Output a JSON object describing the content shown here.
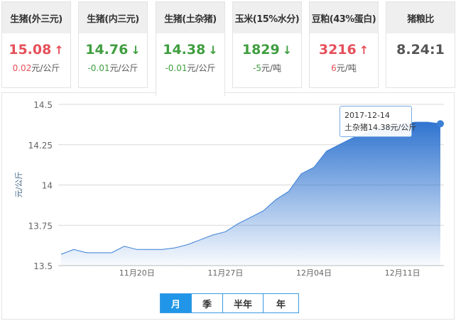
{
  "cards": [
    {
      "title": "生猪(外三元)",
      "value": "15.08",
      "change": "0.02",
      "unit": "元/公斤",
      "trend": "up"
    },
    {
      "title": "生猪(内三元)",
      "value": "14.76",
      "change": "-0.01",
      "unit": "元/公斤",
      "trend": "down"
    },
    {
      "title": "生猪(土杂猪)",
      "value": "14.38",
      "change": "-0.01",
      "unit": "元/公斤",
      "trend": "down"
    },
    {
      "title": "玉米(15%水分)",
      "value": "1829",
      "change": "-5",
      "unit": "元/吨",
      "trend": "down"
    },
    {
      "title": "豆粕(43%蛋白)",
      "value": "3216",
      "change": "6",
      "unit": "元/吨",
      "trend": "up"
    },
    {
      "title": "猪粮比",
      "value": "8.24:1",
      "change": "",
      "unit": "",
      "trend": "flat"
    }
  ],
  "icons": {
    "up": "arrow-up-icon",
    "down": "arrow-down-icon"
  },
  "colors": {
    "up": "#e5505a",
    "down": "#3f9e3f",
    "series": "#3a7fd5",
    "accent": "#2196e8"
  },
  "chart_data": {
    "type": "area",
    "ylabel": "元/公斤",
    "ylim": [
      13.5,
      14.5
    ],
    "yticks": [
      "14.5",
      "14.25",
      "14",
      "13.75",
      "13.5"
    ],
    "xticks": [
      {
        "date": "2017-11-20",
        "label": "11月20日"
      },
      {
        "date": "2017-11-27",
        "label": "11月27日"
      },
      {
        "date": "2017-12-04",
        "label": "12月04日"
      },
      {
        "date": "2017-12-11",
        "label": "12月11日"
      }
    ],
    "grid": true,
    "x_start": "2017-11-14",
    "x_end": "2017-12-14",
    "series": [
      {
        "values": [
          13.57,
          13.6,
          13.58,
          13.58,
          13.58,
          13.62,
          13.6,
          13.6,
          13.6,
          13.61,
          13.63,
          13.66,
          13.69,
          13.71,
          13.76,
          13.8,
          13.84,
          13.91,
          13.96,
          14.07,
          14.11,
          14.21,
          14.25,
          14.29,
          14.32,
          14.35,
          14.37,
          14.38,
          14.39,
          14.39,
          14.38
        ]
      }
    ],
    "tooltip": {
      "date": "2017-12-14",
      "text": "土杂猪14.38元/公斤"
    }
  },
  "ranges": [
    "月",
    "季",
    "半年",
    "年"
  ],
  "active_range": "月"
}
